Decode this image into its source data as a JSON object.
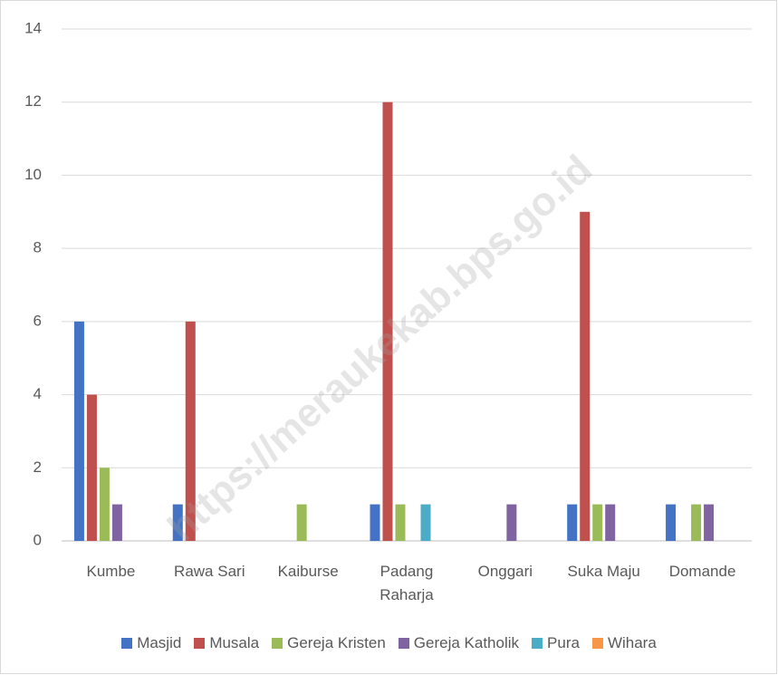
{
  "chart_data": {
    "type": "bar",
    "categories": [
      "Kumbe",
      "Rawa Sari",
      "Kaiburse",
      "Padang Raharja",
      "Onggari",
      "Suka Maju",
      "Domande"
    ],
    "series": [
      {
        "name": "Masjid",
        "color": "#4472c4",
        "values": [
          6,
          1,
          0,
          1,
          0,
          1,
          1
        ]
      },
      {
        "name": "Musala",
        "color": "#c0504d",
        "values": [
          4,
          6,
          0,
          12,
          0,
          9,
          0
        ]
      },
      {
        "name": "Gereja Kristen",
        "color": "#9bbb59",
        "values": [
          2,
          0,
          1,
          1,
          0,
          1,
          1
        ]
      },
      {
        "name": "Gereja Katholik",
        "color": "#8064a2",
        "values": [
          1,
          0,
          0,
          0,
          1,
          1,
          1
        ]
      },
      {
        "name": "Pura",
        "color": "#4bacc6",
        "values": [
          0,
          0,
          0,
          1,
          0,
          0,
          0
        ]
      },
      {
        "name": "Wihara",
        "color": "#f79646",
        "values": [
          0,
          0,
          0,
          0,
          0,
          0,
          0
        ]
      }
    ],
    "ylim": [
      0,
      14
    ],
    "yticks": [
      0,
      2,
      4,
      6,
      8,
      10,
      12,
      14
    ],
    "grid": true,
    "legend": "bottom",
    "watermark": "https://meraukekab.bps.go.id"
  }
}
